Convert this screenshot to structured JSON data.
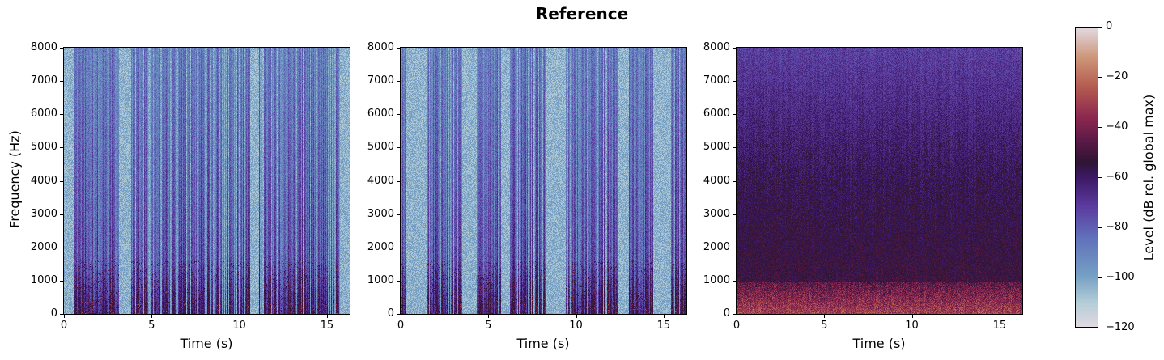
{
  "figure": {
    "title": "Reference",
    "colormap": "twilight",
    "colorbar": {
      "label": "Level (dB rel. global max)",
      "ticks": [
        "0",
        "−20",
        "−40",
        "−60",
        "−80",
        "−100",
        "−120"
      ],
      "range": [
        -120,
        0
      ]
    }
  },
  "chart_data": [
    {
      "type": "heatmap",
      "title": "",
      "xlabel": "Time (s)",
      "ylabel": "Frequency (Hz)",
      "xlim": [
        0,
        16.3
      ],
      "ylim": [
        0,
        8000
      ],
      "xticks": [
        "0",
        "5",
        "10",
        "15"
      ],
      "yticks": [
        "0",
        "1000",
        "2000",
        "3000",
        "4000",
        "5000",
        "6000",
        "7000",
        "8000"
      ],
      "description": "Spectrogram, speech with many silent (light) gaps; harmonics below ~2000 Hz",
      "silent_intervals_s": [
        [
          0,
          0.6
        ],
        [
          3.1,
          3.8
        ],
        [
          10.6,
          11.1
        ],
        [
          15.7,
          16.3
        ]
      ],
      "value_range_db": [
        -120,
        0
      ]
    },
    {
      "type": "heatmap",
      "title": "",
      "xlabel": "Time (s)",
      "ylabel": "",
      "xlim": [
        0,
        16.3
      ],
      "ylim": [
        0,
        8000
      ],
      "xticks": [
        "0",
        "5",
        "10",
        "15"
      ],
      "yticks": [
        "0",
        "1000",
        "2000",
        "3000",
        "4000",
        "5000",
        "6000",
        "7000",
        "8000"
      ],
      "description": "Spectrogram, speech with light-colored silent gaps, less dense than panel 1",
      "silent_intervals_s": [
        [
          0.3,
          1.5
        ],
        [
          3.5,
          4.3
        ],
        [
          5.7,
          6.2
        ],
        [
          8.3,
          9.4
        ],
        [
          12.4,
          13.0
        ],
        [
          14.4,
          15.4
        ]
      ],
      "value_range_db": [
        -120,
        0
      ]
    },
    {
      "type": "heatmap",
      "title": "",
      "xlabel": "Time (s)",
      "ylabel": "",
      "xlim": [
        0,
        16.3
      ],
      "ylim": [
        0,
        8000
      ],
      "xticks": [
        "0",
        "5",
        "10",
        "15"
      ],
      "yticks": [
        "0",
        "1000",
        "2000",
        "3000",
        "4000",
        "5000",
        "6000",
        "7000",
        "8000"
      ],
      "description": "Spectrogram with noise floor (dark purple overall), bright energy below ~1000 Hz",
      "silent_intervals_s": [],
      "value_range_db": [
        -120,
        0
      ]
    }
  ]
}
